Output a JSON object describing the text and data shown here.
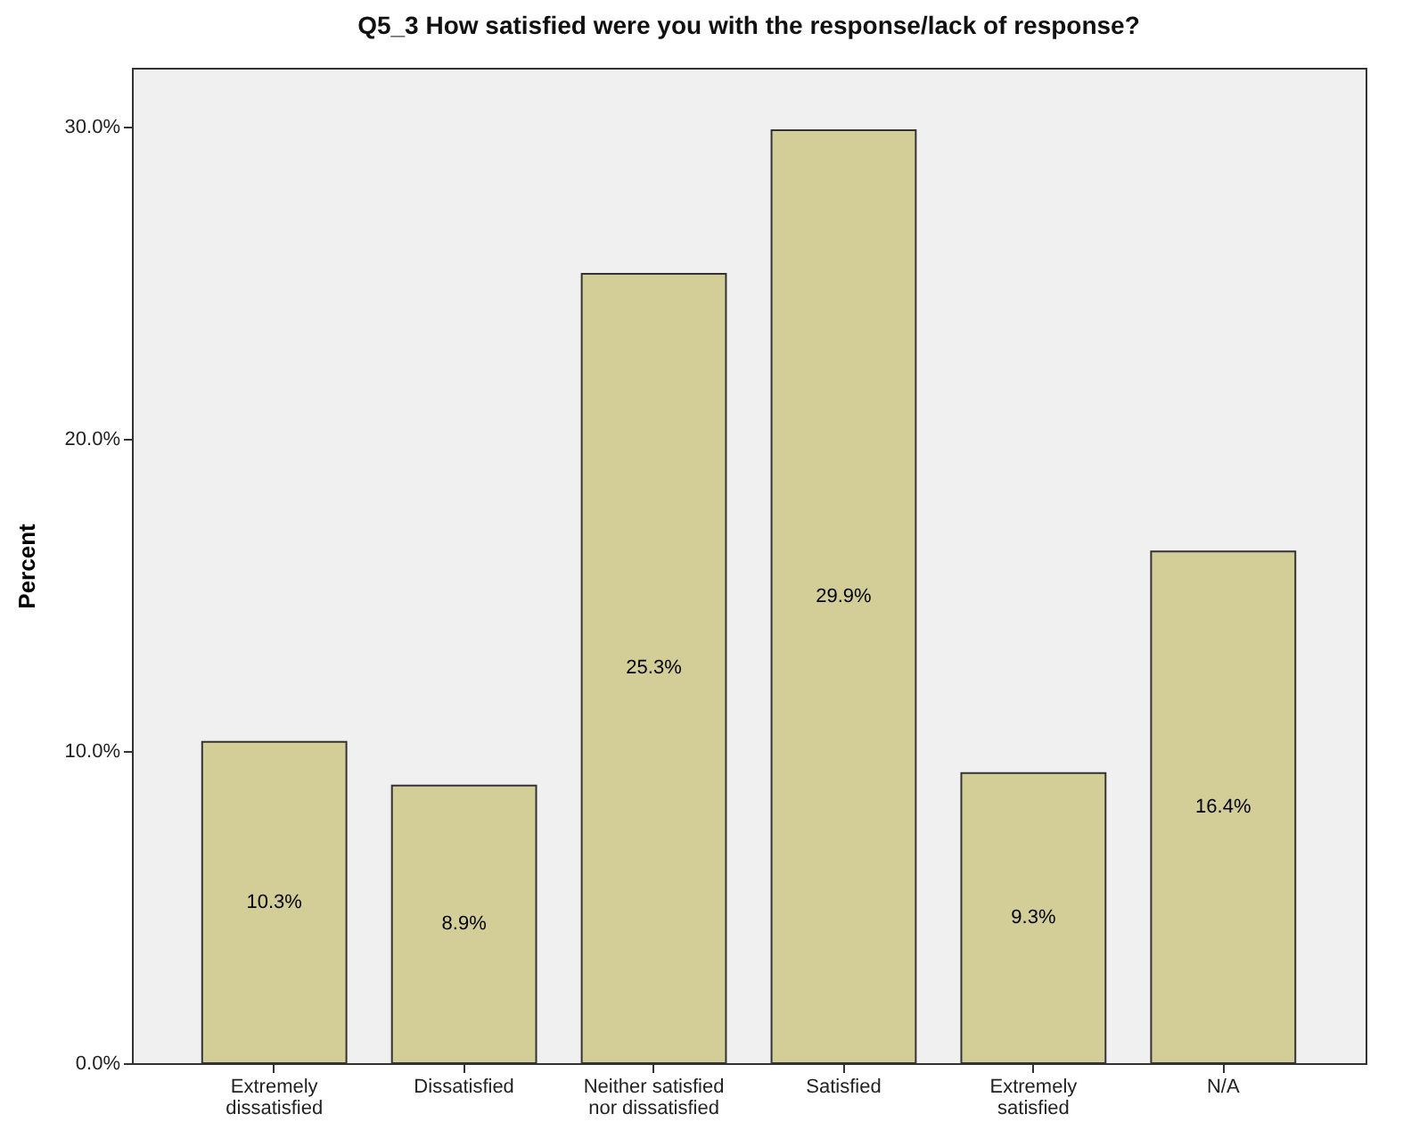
{
  "chart_data": {
    "type": "bar",
    "title": "Q5_3 How satisfied were you with the response/lack of response?",
    "ylabel": "Percent",
    "categories": [
      "Extremely dissatisfied",
      "Dissatisfied",
      "Neither satisfied nor dissatisfied",
      "Satisfied",
      "Extremely satisfied",
      "N/A"
    ],
    "values": [
      10.3,
      8.9,
      25.3,
      29.9,
      9.3,
      16.4
    ],
    "value_labels": [
      "10.3%",
      "8.9%",
      "25.3%",
      "29.9%",
      "9.3%",
      "16.4%"
    ],
    "color": "#d3ce97",
    "ylim": [
      0,
      31.9
    ],
    "yticks": [
      {
        "value": 0,
        "label": "0.0%"
      },
      {
        "value": 10,
        "label": "10.0%"
      },
      {
        "value": 20,
        "label": "20.0%"
      },
      {
        "value": 30,
        "label": "30.0%"
      }
    ]
  }
}
